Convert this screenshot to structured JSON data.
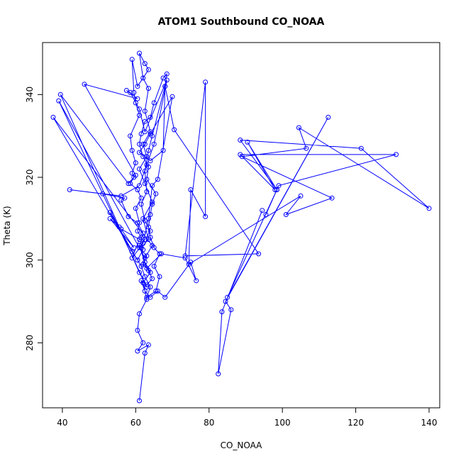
{
  "chart_data": {
    "type": "line",
    "title": "ATOM1 Southbound CO_NOAA",
    "xlabel": "CO_NOAA",
    "ylabel": "Theta (K)",
    "xlim": [
      37.5,
      140
    ],
    "ylim": [
      266,
      350
    ],
    "xticks": [
      40,
      60,
      80,
      100,
      120,
      140
    ],
    "yticks": [
      280,
      300,
      320,
      340
    ],
    "grid": false,
    "series_color": "#0000ff",
    "marker": "open-circle",
    "series": [
      {
        "points": [
          [
            61.0,
            266.0
          ],
          [
            62.5,
            277.5
          ],
          [
            63.5,
            279.5
          ],
          [
            60.5,
            278.0
          ],
          [
            62.0,
            280.0
          ],
          [
            60.5,
            283.0
          ],
          [
            61.0,
            287.0
          ],
          [
            63.0,
            290.5
          ],
          [
            62.0,
            294.5
          ],
          [
            64.0,
            297.0
          ],
          [
            62.5,
            299.5
          ],
          [
            61.5,
            303.0
          ],
          [
            63.5,
            305.0
          ],
          [
            62.0,
            310.0
          ],
          [
            64.5,
            314.0
          ],
          [
            62.5,
            318.5
          ],
          [
            61.0,
            322.0
          ],
          [
            63.0,
            325.0
          ],
          [
            62.0,
            328.0
          ],
          [
            64.0,
            331.0
          ],
          [
            62.5,
            336.0
          ],
          [
            63.5,
            341.5
          ],
          [
            62.0,
            344.0
          ],
          [
            61.0,
            350.0
          ],
          [
            62.5,
            347.5
          ],
          [
            63.5,
            346.0
          ],
          [
            60.5,
            342.0
          ],
          [
            59.0,
            348.5
          ],
          [
            59.5,
            340.5
          ],
          [
            60.0,
            338.0
          ],
          [
            61.0,
            335.0
          ],
          [
            58.5,
            330.0
          ],
          [
            59.0,
            326.5
          ],
          [
            60.0,
            323.5
          ],
          [
            59.0,
            321.0
          ],
          [
            59.5,
            320.0
          ],
          [
            58.5,
            318.5
          ],
          [
            60.5,
            317.0
          ],
          [
            61.5,
            315.0
          ],
          [
            60.0,
            312.5
          ],
          [
            61.0,
            309.0
          ],
          [
            60.5,
            307.0
          ],
          [
            61.5,
            305.5
          ],
          [
            62.0,
            302.5
          ],
          [
            60.5,
            300.0
          ],
          [
            61.5,
            298.5
          ],
          [
            62.5,
            296.0
          ],
          [
            64.0,
            293.5
          ],
          [
            63.0,
            291.0
          ],
          [
            65.5,
            292.5
          ],
          [
            66.5,
            296.0
          ],
          [
            65.0,
            298.5
          ],
          [
            66.5,
            301.5
          ],
          [
            65.0,
            303.0
          ],
          [
            64.0,
            305.5
          ],
          [
            63.5,
            308.0
          ],
          [
            64.0,
            311.0
          ],
          [
            64.5,
            313.5
          ],
          [
            65.5,
            316.0
          ],
          [
            63.0,
            319.5
          ],
          [
            63.5,
            322.5
          ],
          [
            62.0,
            325.0
          ],
          [
            61.0,
            328.0
          ],
          [
            61.5,
            330.5
          ],
          [
            62.5,
            333.5
          ],
          [
            64.0,
            334.5
          ],
          [
            65.0,
            338.0
          ],
          [
            67.5,
            344.0
          ],
          [
            68.5,
            345.0
          ],
          [
            68.0,
            342.0
          ],
          [
            64.5,
            330.0
          ],
          [
            63.5,
            326.5
          ],
          [
            62.5,
            321.5
          ],
          [
            63.0,
            316.5
          ],
          [
            61.5,
            313.5
          ],
          [
            62.5,
            309.5
          ],
          [
            64.0,
            307.0
          ],
          [
            62.5,
            305.0
          ],
          [
            61.0,
            303.0
          ],
          [
            63.0,
            301.0
          ],
          [
            62.0,
            299.0
          ],
          [
            63.5,
            297.5
          ],
          [
            64.5,
            295.5
          ],
          [
            63.0,
            294.0
          ],
          [
            61.5,
            295.0
          ],
          [
            62.5,
            292.5
          ],
          [
            64.0,
            291.0
          ],
          [
            66.0,
            292.5
          ],
          [
            68.0,
            291.0
          ],
          [
            75.0,
            299.5
          ],
          [
            76.5,
            295.0
          ],
          [
            73.5,
            300.5
          ],
          [
            67.0,
            301.5
          ],
          [
            63.0,
            298.0
          ],
          [
            61.0,
            303.5
          ],
          [
            62.0,
            306.5
          ],
          [
            60.5,
            309.0
          ],
          [
            58.0,
            310.5
          ],
          [
            56.0,
            314.5
          ],
          [
            57.0,
            315.0
          ],
          [
            51.0,
            316.0
          ],
          [
            42.0,
            317.0
          ],
          [
            56.0,
            315.5
          ],
          [
            61.0,
            318.0
          ],
          [
            63.0,
            323.0
          ],
          [
            65.0,
            328.0
          ],
          [
            68.5,
            343.5
          ],
          [
            62.5,
            331.0
          ],
          [
            61.0,
            336.5
          ],
          [
            58.5,
            340.5
          ],
          [
            57.5,
            341.0
          ],
          [
            60.5,
            339.0
          ],
          [
            46.0,
            342.5
          ],
          [
            60.0,
            320.5
          ],
          [
            58.0,
            318.5
          ],
          [
            39.5,
            340.0
          ],
          [
            61.0,
            297.0
          ],
          [
            63.0,
            293.5
          ],
          [
            39.0,
            338.5
          ],
          [
            62.5,
            300.5
          ],
          [
            64.5,
            303.5
          ],
          [
            37.5,
            334.5
          ],
          [
            59.0,
            302.0
          ],
          [
            60.5,
            300.0
          ],
          [
            53.0,
            311.5
          ],
          [
            55.5,
            308.0
          ],
          [
            53.0,
            310.0
          ],
          [
            59.5,
            303.0
          ],
          [
            56.0,
            307.5
          ],
          [
            61.0,
            305.0
          ],
          [
            59.0,
            300.5
          ],
          [
            62.0,
            304.0
          ],
          [
            63.5,
            310.0
          ],
          [
            64.5,
            318.0
          ],
          [
            66.0,
            319.5
          ],
          [
            70.0,
            339.5
          ],
          [
            64.0,
            330.5
          ],
          [
            62.5,
            328.0
          ],
          [
            61.0,
            326.0
          ],
          [
            64.0,
            324.0
          ],
          [
            67.5,
            326.5
          ],
          [
            68.0,
            342.0
          ],
          [
            70.5,
            331.5
          ],
          [
            93.5,
            301.5
          ],
          [
            73.5,
            301.0
          ],
          [
            79.0,
            343.0
          ],
          [
            79.0,
            310.5
          ],
          [
            75.0,
            317.0
          ],
          [
            74.5,
            299.0
          ],
          [
            105.0,
            315.5
          ],
          [
            101.0,
            311.0
          ],
          [
            113.5,
            315.0
          ],
          [
            89.0,
            325.0
          ],
          [
            106.5,
            327.0
          ],
          [
            104.5,
            332.0
          ],
          [
            140.0,
            312.5
          ],
          [
            121.5,
            327.0
          ],
          [
            88.5,
            329.0
          ],
          [
            98.5,
            317.0
          ],
          [
            95.5,
            311.0
          ],
          [
            99.0,
            318.0
          ],
          [
            131.0,
            325.5
          ],
          [
            88.5,
            325.5
          ],
          [
            98.0,
            317.0
          ],
          [
            90.5,
            328.5
          ],
          [
            98.5,
            317.0
          ],
          [
            85.0,
            291.0
          ],
          [
            112.5,
            334.5
          ],
          [
            84.5,
            290.0
          ],
          [
            86.0,
            288.0
          ],
          [
            82.5,
            272.5
          ],
          [
            83.5,
            287.5
          ],
          [
            94.5,
            312.0
          ]
        ]
      }
    ]
  }
}
